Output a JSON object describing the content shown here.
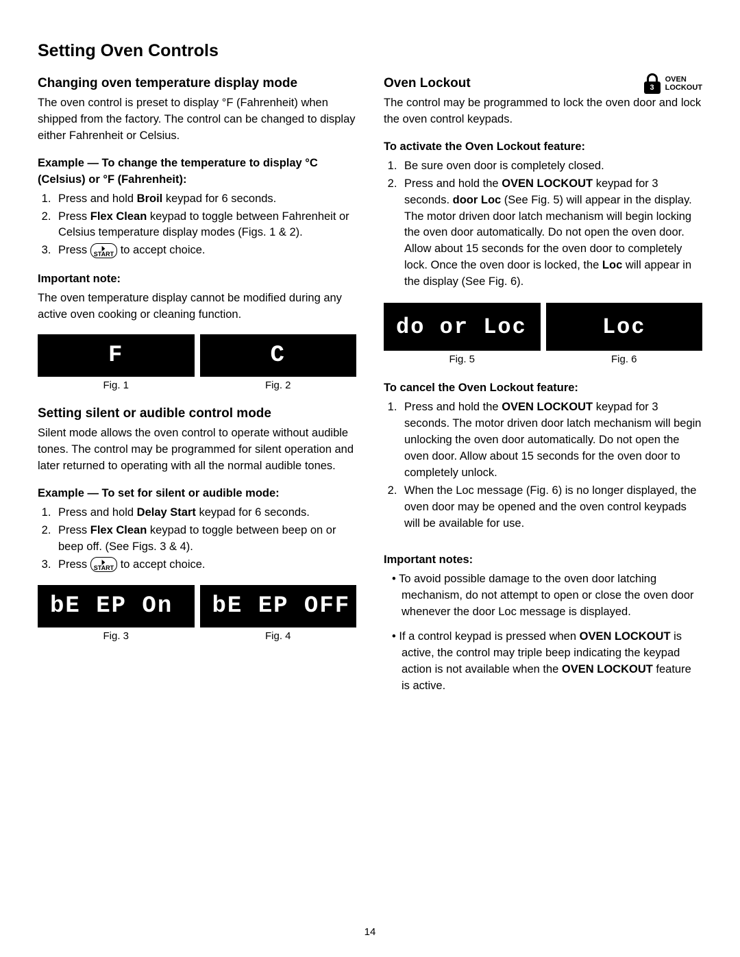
{
  "pageTitle": "Setting Oven Controls",
  "pageNumber": "14",
  "left": {
    "s1": {
      "heading": "Changing oven temperature display mode",
      "intro": "The oven control is preset to display °F (Fahrenheit) when shipped from the factory. The control can be changed to display either Fahrenheit or Celsius.",
      "exampleLabel": "Example — To change the temperature to display °C (Celsius) or °F (Fahrenheit):",
      "steps": {
        "s1a": "Press and hold ",
        "s1b": "Broil",
        "s1c": " keypad for 6 seconds.",
        "s2a": "Press ",
        "s2b": "Flex Clean",
        "s2c": " keypad to toggle between Fahrenheit or Celsius temperature display modes (Figs. 1 & 2).",
        "s3a": "Press ",
        "s3b": " to accept choice."
      },
      "noteLabel": "Important note:",
      "noteText": "The oven temperature display cannot be modified during any active oven cooking or cleaning function.",
      "figs": {
        "f1": "F",
        "f2": "C",
        "c1": "Fig. 1",
        "c2": "Fig. 2"
      }
    },
    "s2": {
      "heading": "Setting silent or audible control mode",
      "intro": "Silent mode allows the oven control to operate without audible tones. The control may be programmed for silent operation and later returned to operating with all the normal audible tones.",
      "exampleLabel": "Example — To set for silent or audible mode:",
      "steps": {
        "s1a": "Press and hold ",
        "s1b": "Delay Start",
        "s1c": " keypad for 6 seconds.",
        "s2a": "Press ",
        "s2b": "Flex Clean",
        "s2c": " keypad to toggle between beep on or beep off. (See Figs. 3 & 4).",
        "s3a": "Press ",
        "s3b": " to accept choice."
      },
      "figs": {
        "f3": "bE EP On",
        "f4": "bE EP OFF",
        "c3": "Fig. 3",
        "c4": "Fig. 4"
      }
    }
  },
  "right": {
    "heading": "Oven Lockout",
    "badge": {
      "num": "3",
      "line1": "OVEN",
      "line2": "LOCKOUT"
    },
    "intro": "The control may be programmed to lock the oven door and lock the oven control keypads.",
    "activateLabel": "To activate the Oven Lockout feature:",
    "activate": {
      "s1": "Be sure oven door is completely closed.",
      "s2a": "Press and hold the ",
      "s2b": "OVEN LOCKOUT",
      "s2c": " keypad for 3 seconds. ",
      "s2d": "door Loc",
      "s2e": " (See Fig. 5) will appear in the display. The motor driven door latch mechanism will begin locking the oven door automatically. Do not open the oven door. Allow about 15 seconds for the oven door to completely lock. Once the oven door is locked, the ",
      "s2f": "Loc",
      "s2g": " will appear in the display (See Fig. 6)."
    },
    "figs": {
      "f5": "do or Loc",
      "f6": "Loc",
      "c5": "Fig. 5",
      "c6": "Fig. 6"
    },
    "cancelLabel": "To cancel the Oven Lockout feature:",
    "cancel": {
      "s1a": "Press and hold the ",
      "s1b": "OVEN LOCKOUT",
      "s1c": " keypad for 3 seconds. The motor driven door latch mechanism will begin unlocking the oven door automatically. Do not open the oven door. Allow about 15 seconds for the oven door to completely unlock.",
      "s2": "When the Loc message (Fig. 6) is no longer displayed, the oven door may be opened and the oven control keypads will be available for use."
    },
    "notesLabel": "Important notes:",
    "notes": {
      "n1": "To avoid possible damage to the oven door latching mechanism, do not attempt to open or close the oven door whenever the door Loc message is displayed.",
      "n2a": "If a control keypad is pressed when ",
      "n2b": "OVEN LOCKOUT",
      "n2c": " is active, the control may triple beep indicating the keypad action is not available when the ",
      "n2d": "OVEN LOCKOUT",
      "n2e": " feature is active."
    }
  },
  "startLabel": "START"
}
